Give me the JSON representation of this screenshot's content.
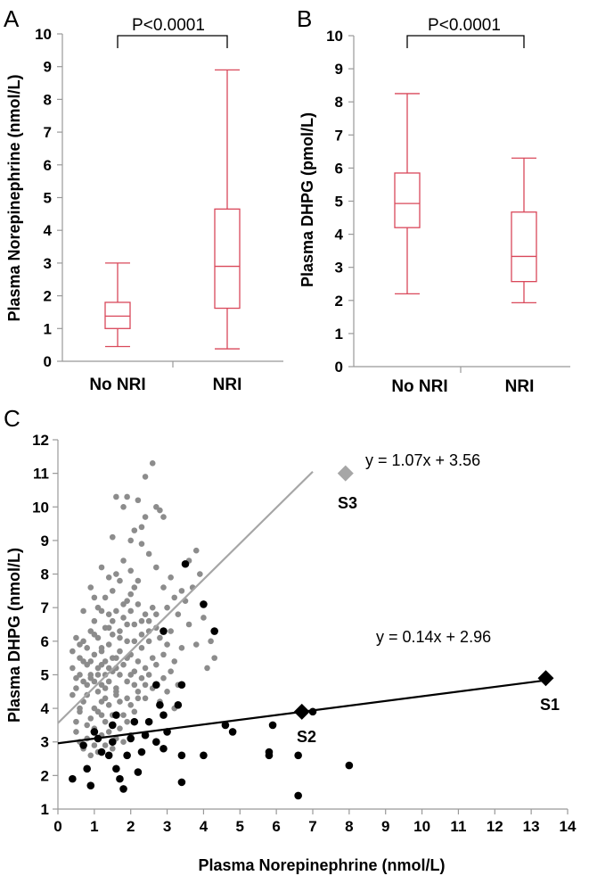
{
  "chart_data": [
    {
      "panel_label": "A",
      "type": "box",
      "ylabel": "Plasma Norepinephrine (nmol/L)",
      "ylim": [
        0,
        10
      ],
      "yticks": [
        0,
        1,
        2,
        3,
        4,
        5,
        6,
        7,
        8,
        9,
        10
      ],
      "categories": [
        "No NRI",
        "NRI"
      ],
      "boxes": [
        {
          "category": "No NRI",
          "min": 0.45,
          "q1": 1.0,
          "median": 1.38,
          "q3": 1.8,
          "max": 3.0
        },
        {
          "category": "NRI",
          "min": 0.38,
          "q1": 1.62,
          "median": 2.9,
          "q3": 4.65,
          "max": 8.9
        }
      ],
      "annotation": "P<0.0001",
      "box_color": "#d9485a"
    },
    {
      "panel_label": "B",
      "type": "box",
      "ylabel": "Plasma DHPG (pmol/L)",
      "ylim": [
        0,
        10
      ],
      "yticks": [
        0,
        1,
        2,
        3,
        4,
        5,
        6,
        7,
        8,
        9,
        10
      ],
      "categories": [
        "No NRI",
        "NRI"
      ],
      "boxes": [
        {
          "category": "No NRI",
          "min": 2.2,
          "q1": 4.2,
          "median": 4.93,
          "q3": 5.85,
          "max": 8.25
        },
        {
          "category": "NRI",
          "min": 1.93,
          "q1": 2.57,
          "median": 3.33,
          "q3": 4.67,
          "max": 6.3
        }
      ],
      "annotation": "P<0.0001",
      "box_color": "#d9485a"
    },
    {
      "panel_label": "C",
      "type": "scatter",
      "xlabel": "Plasma Norepinephrine (nmol/L)",
      "ylabel": "Plasma DHPG (nmol/L)",
      "xlim": [
        0,
        14
      ],
      "ylim": [
        1,
        12
      ],
      "xticks": [
        0,
        1,
        2,
        3,
        4,
        5,
        6,
        7,
        8,
        9,
        10,
        11,
        12,
        13,
        14
      ],
      "yticks": [
        1,
        2,
        3,
        4,
        5,
        6,
        7,
        8,
        9,
        10,
        11,
        12
      ],
      "series": [
        {
          "color": "#8c8c8c",
          "points": [
            [
              0.5,
              3.6
            ],
            [
              0.6,
              3.9
            ],
            [
              0.7,
              4.2
            ],
            [
              0.8,
              4.4
            ],
            [
              0.9,
              3.7
            ],
            [
              1.0,
              4.0
            ],
            [
              1.1,
              4.5
            ],
            [
              1.2,
              3.8
            ],
            [
              1.3,
              4.3
            ],
            [
              1.4,
              4.8
            ],
            [
              0.6,
              5.0
            ],
            [
              0.8,
              5.3
            ],
            [
              0.9,
              4.9
            ],
            [
              1.0,
              5.6
            ],
            [
              1.1,
              5.2
            ],
            [
              1.2,
              4.7
            ],
            [
              1.3,
              5.4
            ],
            [
              1.4,
              5.9
            ],
            [
              1.5,
              5.1
            ],
            [
              1.6,
              4.6
            ],
            [
              0.7,
              6.0
            ],
            [
              0.8,
              5.8
            ],
            [
              0.9,
              6.3
            ],
            [
              1.0,
              6.6
            ],
            [
              1.1,
              6.1
            ],
            [
              1.2,
              5.7
            ],
            [
              1.3,
              6.4
            ],
            [
              1.4,
              6.8
            ],
            [
              1.5,
              6.2
            ],
            [
              1.6,
              5.5
            ],
            [
              0.5,
              4.6
            ],
            [
              0.6,
              5.5
            ],
            [
              0.7,
              4.8
            ],
            [
              0.8,
              3.5
            ],
            [
              0.9,
              5.4
            ],
            [
              1.0,
              3.4
            ],
            [
              1.1,
              3.9
            ],
            [
              1.2,
              4.2
            ],
            [
              1.3,
              3.6
            ],
            [
              1.4,
              4.1
            ],
            [
              1.5,
              3.8
            ],
            [
              1.6,
              4.4
            ],
            [
              1.7,
              5.0
            ],
            [
              1.8,
              5.3
            ],
            [
              1.9,
              4.8
            ],
            [
              2.0,
              5.6
            ],
            [
              2.1,
              5.1
            ],
            [
              2.2,
              4.5
            ],
            [
              2.3,
              5.8
            ],
            [
              2.4,
              5.2
            ],
            [
              1.7,
              6.3
            ],
            [
              1.8,
              6.7
            ],
            [
              1.9,
              6.0
            ],
            [
              2.0,
              6.9
            ],
            [
              2.1,
              6.5
            ],
            [
              2.2,
              7.1
            ],
            [
              2.3,
              6.2
            ],
            [
              2.4,
              6.8
            ],
            [
              2.5,
              6.0
            ],
            [
              2.6,
              5.5
            ],
            [
              1.1,
              7.0
            ],
            [
              1.3,
              7.3
            ],
            [
              1.5,
              7.5
            ],
            [
              1.7,
              7.8
            ],
            [
              1.9,
              7.2
            ],
            [
              2.1,
              7.6
            ],
            [
              1.6,
              8.0
            ],
            [
              1.2,
              8.2
            ],
            [
              2.0,
              8.1
            ],
            [
              1.8,
              8.4
            ],
            [
              0.9,
              7.6
            ],
            [
              1.4,
              7.9
            ],
            [
              0.7,
              6.9
            ],
            [
              1.0,
              7.3
            ],
            [
              1.2,
              6.9
            ],
            [
              1.4,
              6.4
            ],
            [
              1.6,
              6.9
            ],
            [
              1.8,
              7.1
            ],
            [
              2.0,
              7.4
            ],
            [
              2.2,
              7.8
            ],
            [
              2.5,
              6.6
            ],
            [
              2.6,
              7.0
            ],
            [
              2.7,
              6.4
            ],
            [
              2.8,
              6.1
            ],
            [
              2.9,
              5.6
            ],
            [
              3.0,
              5.9
            ],
            [
              3.1,
              6.3
            ],
            [
              3.2,
              5.4
            ],
            [
              3.3,
              6.8
            ],
            [
              3.4,
              5.8
            ],
            [
              2.5,
              5.0
            ],
            [
              2.7,
              5.3
            ],
            [
              2.9,
              4.9
            ],
            [
              3.1,
              5.1
            ],
            [
              3.3,
              4.7
            ],
            [
              2.4,
              4.3
            ],
            [
              2.6,
              4.6
            ],
            [
              2.8,
              4.2
            ],
            [
              3.0,
              4.5
            ],
            [
              3.2,
              4.0
            ],
            [
              3.5,
              7.2
            ],
            [
              3.6,
              6.5
            ],
            [
              3.8,
              5.9
            ],
            [
              4.0,
              6.7
            ],
            [
              4.2,
              6.0
            ],
            [
              4.3,
              5.5
            ],
            [
              4.1,
              5.2
            ],
            [
              3.7,
              7.6
            ],
            [
              3.9,
              8.0
            ],
            [
              3.6,
              8.4
            ],
            [
              3.8,
              8.7
            ],
            [
              3.1,
              7.9
            ],
            [
              2.9,
              7.6
            ],
            [
              2.7,
              8.2
            ],
            [
              2.5,
              8.6
            ],
            [
              2.3,
              8.9
            ],
            [
              2.1,
              9.3
            ],
            [
              2.4,
              9.7
            ],
            [
              1.9,
              10.3
            ],
            [
              2.2,
              10.2
            ],
            [
              2.6,
              11.3
            ],
            [
              2.4,
              10.9
            ],
            [
              2.8,
              9.9
            ],
            [
              2.9,
              9.7
            ],
            [
              2.7,
              10.0
            ],
            [
              1.8,
              10.0
            ],
            [
              1.5,
              9.1
            ],
            [
              2.3,
              9.4
            ],
            [
              1.6,
              10.3
            ],
            [
              2.0,
              9.0
            ],
            [
              0.4,
              4.4
            ],
            [
              0.5,
              4.9
            ],
            [
              0.6,
              4.0
            ],
            [
              0.4,
              5.2
            ],
            [
              0.5,
              3.3
            ],
            [
              0.6,
              3.0
            ],
            [
              0.7,
              2.8
            ],
            [
              0.8,
              3.1
            ],
            [
              0.9,
              2.6
            ],
            [
              1.0,
              2.9
            ],
            [
              1.1,
              2.7
            ],
            [
              1.2,
              3.2
            ],
            [
              1.3,
              2.9
            ],
            [
              1.4,
              3.3
            ],
            [
              1.5,
              2.8
            ],
            [
              1.6,
              3.1
            ],
            [
              1.7,
              3.4
            ],
            [
              1.8,
              3.0
            ],
            [
              1.9,
              3.6
            ],
            [
              2.0,
              3.2
            ],
            [
              0.8,
              4.7
            ],
            [
              0.9,
              5.0
            ],
            [
              1.0,
              4.8
            ],
            [
              1.1,
              5.0
            ],
            [
              1.2,
              5.3
            ],
            [
              1.3,
              5.0
            ],
            [
              1.4,
              5.2
            ],
            [
              1.5,
              5.5
            ],
            [
              1.6,
              5.2
            ],
            [
              1.7,
              5.7
            ],
            [
              0.6,
              5.9
            ],
            [
              0.5,
              6.1
            ],
            [
              0.4,
              5.7
            ],
            [
              0.7,
              5.4
            ],
            [
              1.9,
              5.5
            ],
            [
              2.0,
              5.0
            ],
            [
              2.1,
              4.7
            ],
            [
              2.2,
              5.4
            ],
            [
              2.3,
              4.9
            ],
            [
              2.4,
              4.7
            ],
            [
              1.6,
              4.5
            ],
            [
              1.7,
              4.2
            ],
            [
              1.8,
              3.8
            ],
            [
              1.9,
              4.3
            ],
            [
              2.0,
              4.1
            ],
            [
              2.1,
              3.9
            ],
            [
              2.2,
              4.3
            ],
            [
              1.3,
              4.6
            ],
            [
              1.2,
              5.8
            ],
            [
              1.0,
              6.2
            ],
            [
              1.5,
              6.6
            ],
            [
              1.7,
              6.1
            ],
            [
              1.9,
              6.5
            ],
            [
              2.1,
              6.0
            ],
            [
              2.3,
              6.6
            ],
            [
              2.5,
              6.3
            ],
            [
              2.7,
              6.8
            ],
            [
              3.0,
              7.0
            ],
            [
              3.2,
              7.3
            ],
            [
              3.4,
              7.5
            ]
          ]
        },
        {
          "color": "#000000",
          "points": [
            [
              0.4,
              1.9
            ],
            [
              0.8,
              2.2
            ],
            [
              0.9,
              1.7
            ],
            [
              1.0,
              3.3
            ],
            [
              1.1,
              3.1
            ],
            [
              1.4,
              2.6
            ],
            [
              1.5,
              3.0
            ],
            [
              1.6,
              2.2
            ],
            [
              1.7,
              1.9
            ],
            [
              1.8,
              1.6
            ],
            [
              1.5,
              3.5
            ],
            [
              1.6,
              3.8
            ],
            [
              1.9,
              2.6
            ],
            [
              2.0,
              3.1
            ],
            [
              2.1,
              3.6
            ],
            [
              2.2,
              2.1
            ],
            [
              2.3,
              2.7
            ],
            [
              2.4,
              3.2
            ],
            [
              2.5,
              3.6
            ],
            [
              2.7,
              3.0
            ],
            [
              2.8,
              4.1
            ],
            [
              2.9,
              3.8
            ],
            [
              2.9,
              2.8
            ],
            [
              3.3,
              4.1
            ],
            [
              3.4,
              4.7
            ],
            [
              3.4,
              2.6
            ],
            [
              3.4,
              1.8
            ],
            [
              3.5,
              8.3
            ],
            [
              4.0,
              7.1
            ],
            [
              4.0,
              2.6
            ],
            [
              4.3,
              6.3
            ],
            [
              2.9,
              6.3
            ],
            [
              2.7,
              4.7
            ],
            [
              4.6,
              3.5
            ],
            [
              4.8,
              3.3
            ],
            [
              5.8,
              2.6
            ],
            [
              5.9,
              3.5
            ],
            [
              5.8,
              2.7
            ],
            [
              6.6,
              2.6
            ],
            [
              6.6,
              1.4
            ],
            [
              7.0,
              3.9
            ],
            [
              8.0,
              2.3
            ],
            [
              3.0,
              3.3
            ],
            [
              1.2,
              2.7
            ],
            [
              0.7,
              2.9
            ]
          ]
        }
      ],
      "highlights": [
        {
          "label": "S1",
          "x": 13.4,
          "y": 4.9,
          "color": "#000000"
        },
        {
          "label": "S2",
          "x": 6.7,
          "y": 3.9,
          "color": "#000000"
        },
        {
          "label": "S3",
          "x": 7.9,
          "y": 11.0,
          "color": "#a6a6a6"
        }
      ],
      "fit_lines": [
        {
          "equation": "y = 1.07x + 3.56",
          "slope": 1.07,
          "intercept": 3.56,
          "x_range": [
            0,
            7.0
          ],
          "color": "#a6a6a6"
        },
        {
          "equation": "y = 0.14x + 2.96",
          "slope": 0.14,
          "intercept": 2.96,
          "x_range": [
            0,
            13.3
          ],
          "color": "#000000"
        }
      ]
    }
  ]
}
